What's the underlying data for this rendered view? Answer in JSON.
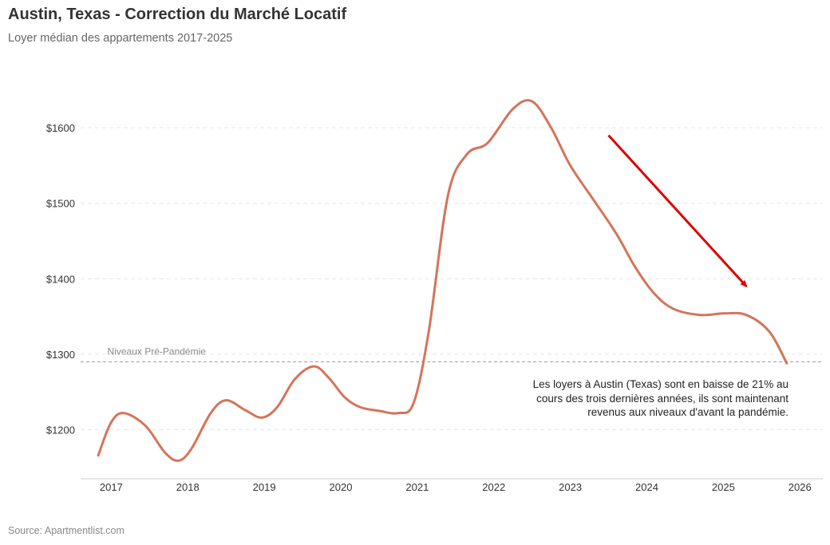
{
  "title": "Austin, Texas - Correction du Marché Locatif",
  "subtitle": "Loyer médian des appartements 2017-2025",
  "source": "Source: Apartmentlist.com",
  "chart_data": {
    "type": "line",
    "title": "Austin, Texas - Correction du Marché Locatif",
    "subtitle": "Loyer médian des appartements 2017-2025",
    "xlabel": "",
    "ylabel": "",
    "grid": true,
    "xlim": [
      2016.6,
      2026.3
    ],
    "ylim": [
      1135,
      1690
    ],
    "x_ticks": [
      2017,
      2018,
      2019,
      2020,
      2021,
      2022,
      2023,
      2024,
      2025,
      2026
    ],
    "y_ticks": [
      {
        "value": 1200,
        "label": "$1200"
      },
      {
        "value": 1300,
        "label": "$1300"
      },
      {
        "value": 1400,
        "label": "$1400"
      },
      {
        "value": 1500,
        "label": "$1500"
      },
      {
        "value": 1600,
        "label": "$1600"
      }
    ],
    "series": [
      {
        "name": "Loyer médian",
        "color": "#d4745a",
        "x": [
          2016.83,
          2017.0,
          2017.17,
          2017.45,
          2017.7,
          2017.88,
          2018.05,
          2018.3,
          2018.5,
          2018.75,
          2018.97,
          2019.17,
          2019.4,
          2019.65,
          2019.85,
          2020.05,
          2020.25,
          2020.5,
          2020.75,
          2020.95,
          2021.15,
          2021.4,
          2021.65,
          2021.92,
          2022.25,
          2022.5,
          2022.75,
          2023.0,
          2023.3,
          2023.6,
          2023.85,
          2024.1,
          2024.35,
          2024.7,
          2025.0,
          2025.3,
          2025.6,
          2025.83
        ],
        "y": [
          1166,
          1210,
          1222,
          1205,
          1170,
          1159,
          1175,
          1222,
          1239,
          1226,
          1216,
          1230,
          1267,
          1284,
          1268,
          1243,
          1230,
          1225,
          1222,
          1235,
          1330,
          1510,
          1565,
          1580,
          1625,
          1635,
          1600,
          1550,
          1505,
          1460,
          1415,
          1380,
          1360,
          1352,
          1354,
          1352,
          1330,
          1288
        ]
      }
    ],
    "reference_line": {
      "value": 1290,
      "label": "Niveaux Pré-Pandémie"
    },
    "trend_arrow": {
      "from": [
        2023.5,
        1590
      ],
      "to": [
        2025.3,
        1390
      ],
      "color": "#dd0000"
    },
    "annotation": "Les loyers à Austin (Texas) sont en baisse de 21% au cours des trois dernières années, ils sont maintenant revenus aux niveaux d'avant la pandémie."
  }
}
